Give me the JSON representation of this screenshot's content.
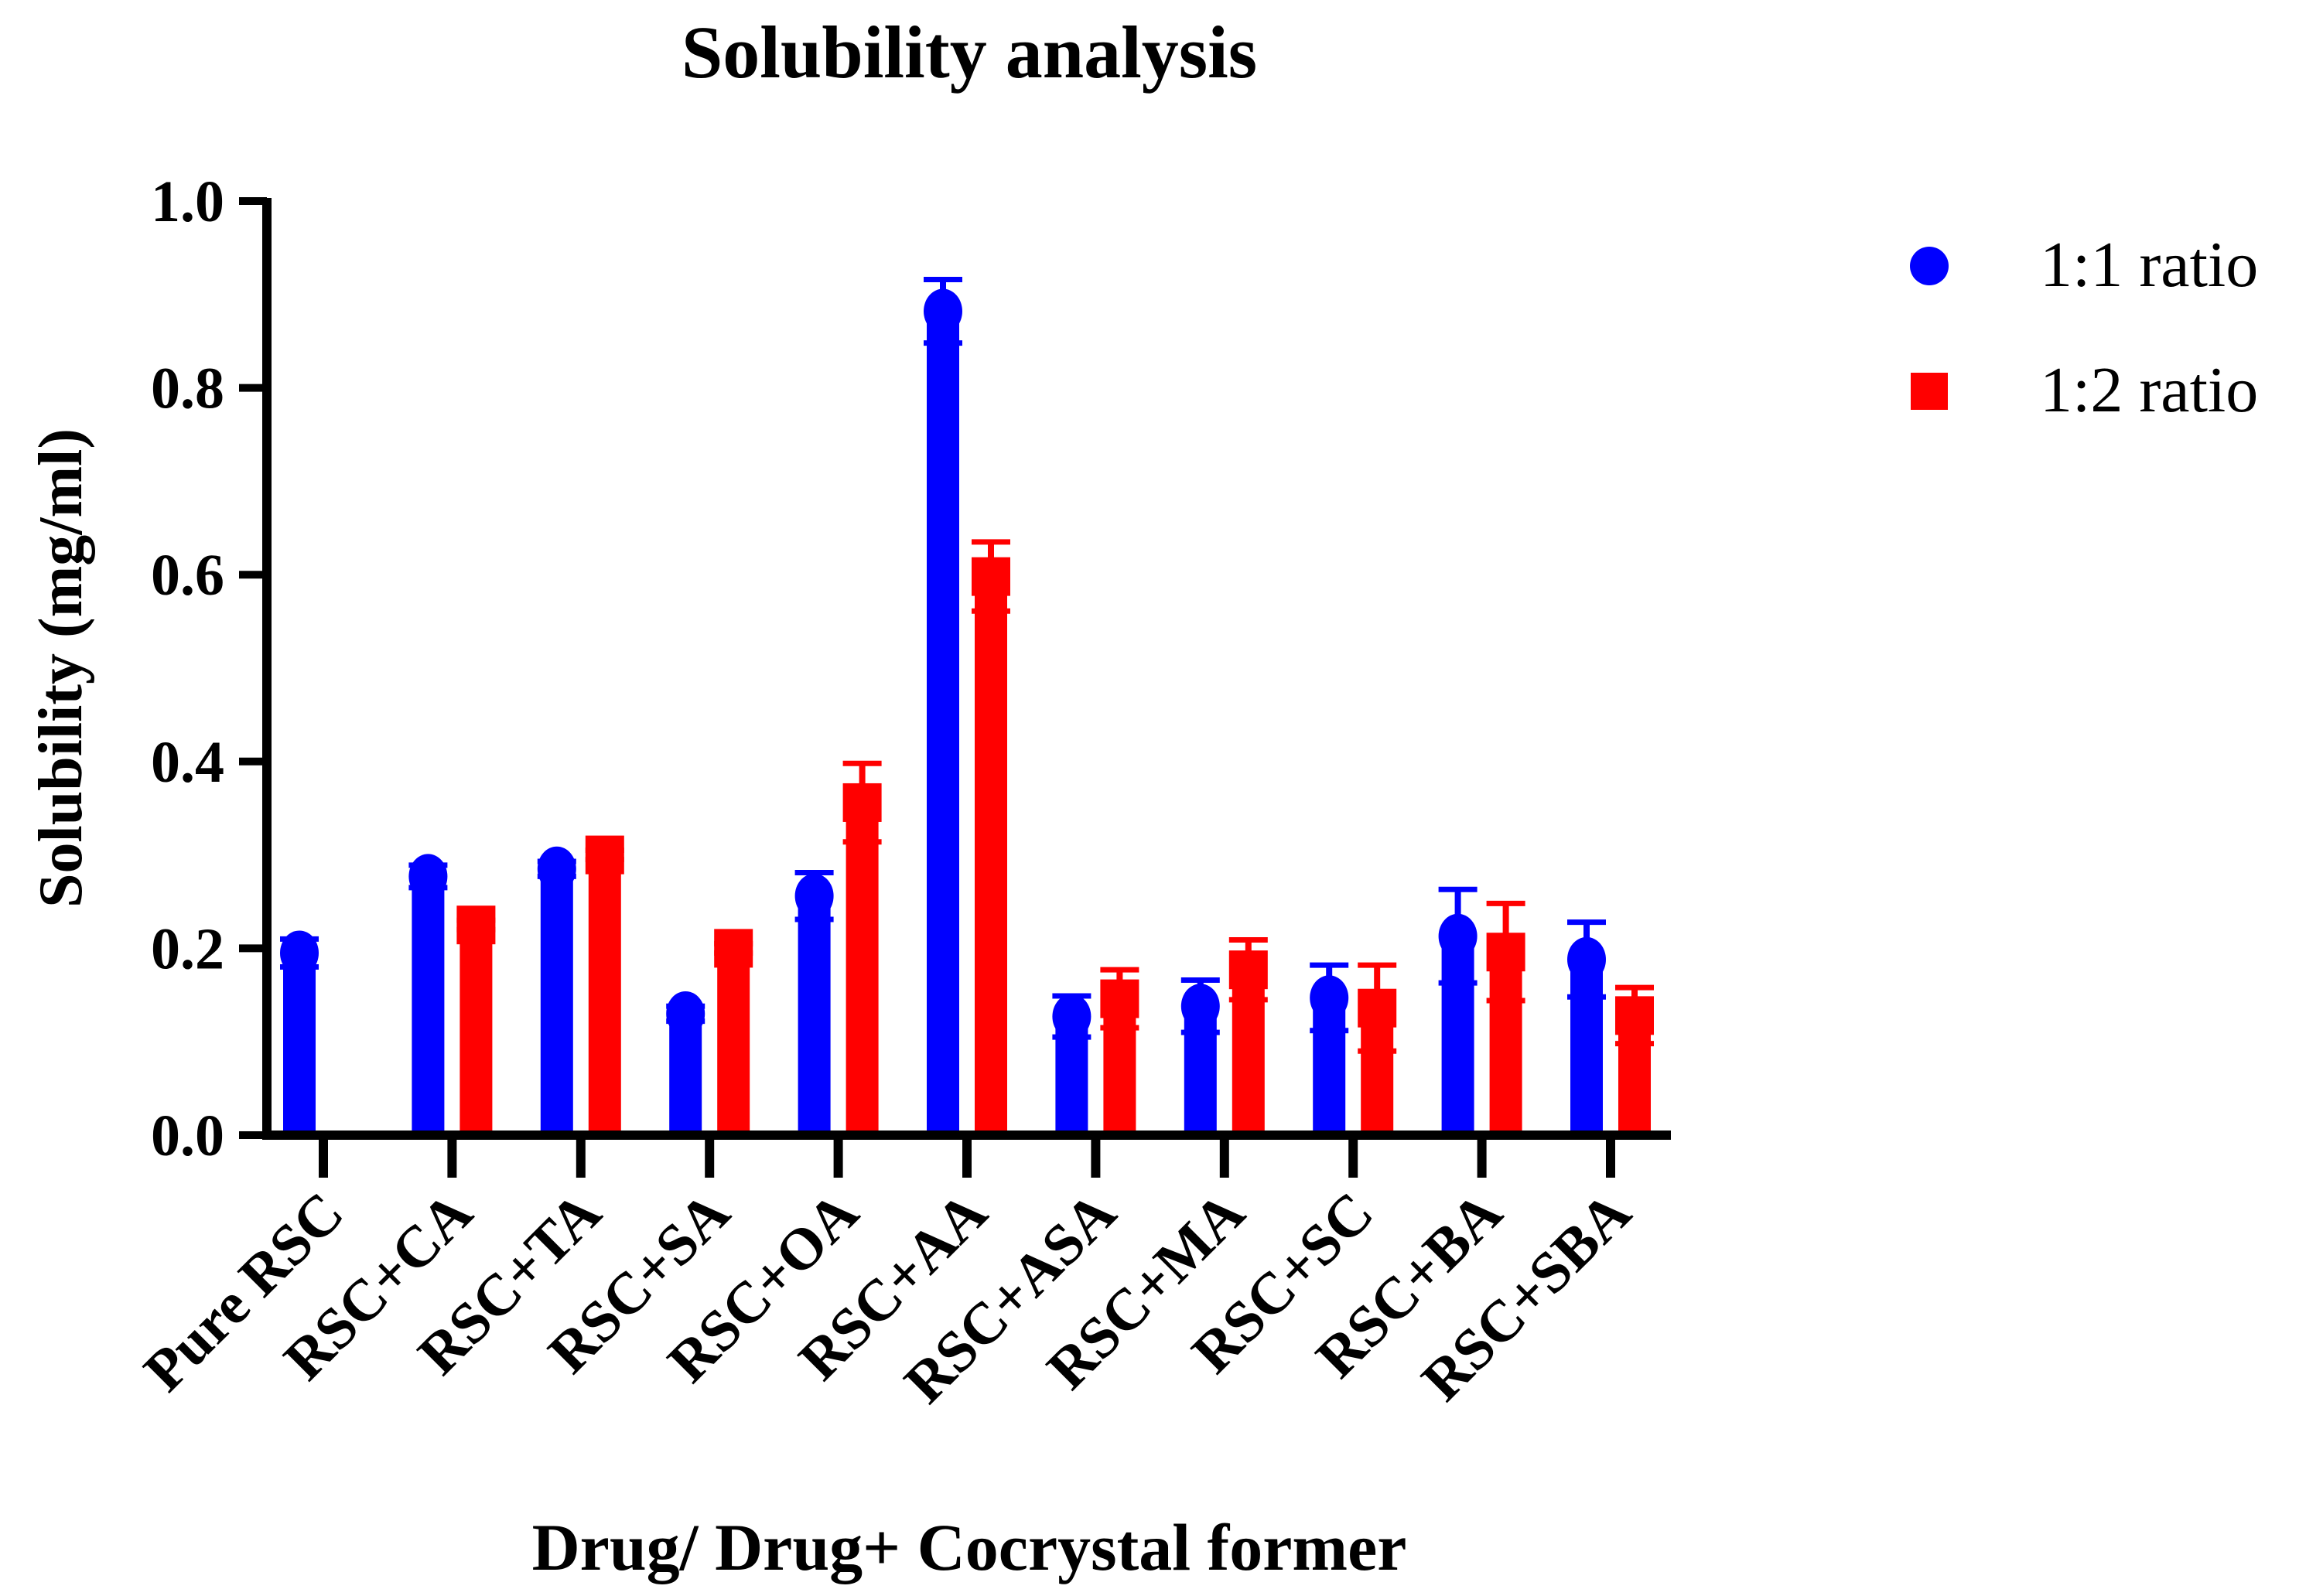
{
  "chart_data": {
    "type": "bar",
    "title": "Solubility analysis",
    "xlabel": "Drug/ Drug+ Cocrystal former",
    "ylabel": "Solubility (mg/ml)",
    "ylim": [
      0,
      1.0
    ],
    "yticks": [
      "0.0",
      "0.2",
      "0.4",
      "0.6",
      "0.8",
      "1.0"
    ],
    "grid": false,
    "legend_placement": "top-right",
    "categories": [
      "Pure RSC",
      "RSC+CA",
      "RSC+TA",
      "RSC+SA",
      "RSC+OA",
      "RSC+AA",
      "RSC+ASA",
      "RSC+MA",
      "RSC+SC",
      "RSC+BA",
      "RSC+SBA"
    ],
    "series": [
      {
        "name": "1:1 ratio",
        "color": "#0000ff",
        "marker": "circle",
        "values": [
          0.195,
          0.277,
          0.285,
          0.13,
          0.256,
          0.882,
          0.127,
          0.138,
          0.147,
          0.213,
          0.188
        ],
        "errors": [
          0.015,
          0.012,
          0.008,
          0.008,
          0.025,
          0.034,
          0.022,
          0.028,
          0.035,
          0.05,
          0.04
        ]
      },
      {
        "name": "1:2 ratio",
        "color": "#ff0000",
        "marker": "square",
        "values": [
          null,
          0.225,
          0.3,
          0.2,
          0.356,
          0.598,
          0.146,
          0.177,
          0.136,
          0.196,
          0.128
        ],
        "errors": [
          null,
          0.005,
          0.005,
          0.005,
          0.042,
          0.037,
          0.031,
          0.032,
          0.046,
          0.052,
          0.03
        ]
      }
    ]
  }
}
